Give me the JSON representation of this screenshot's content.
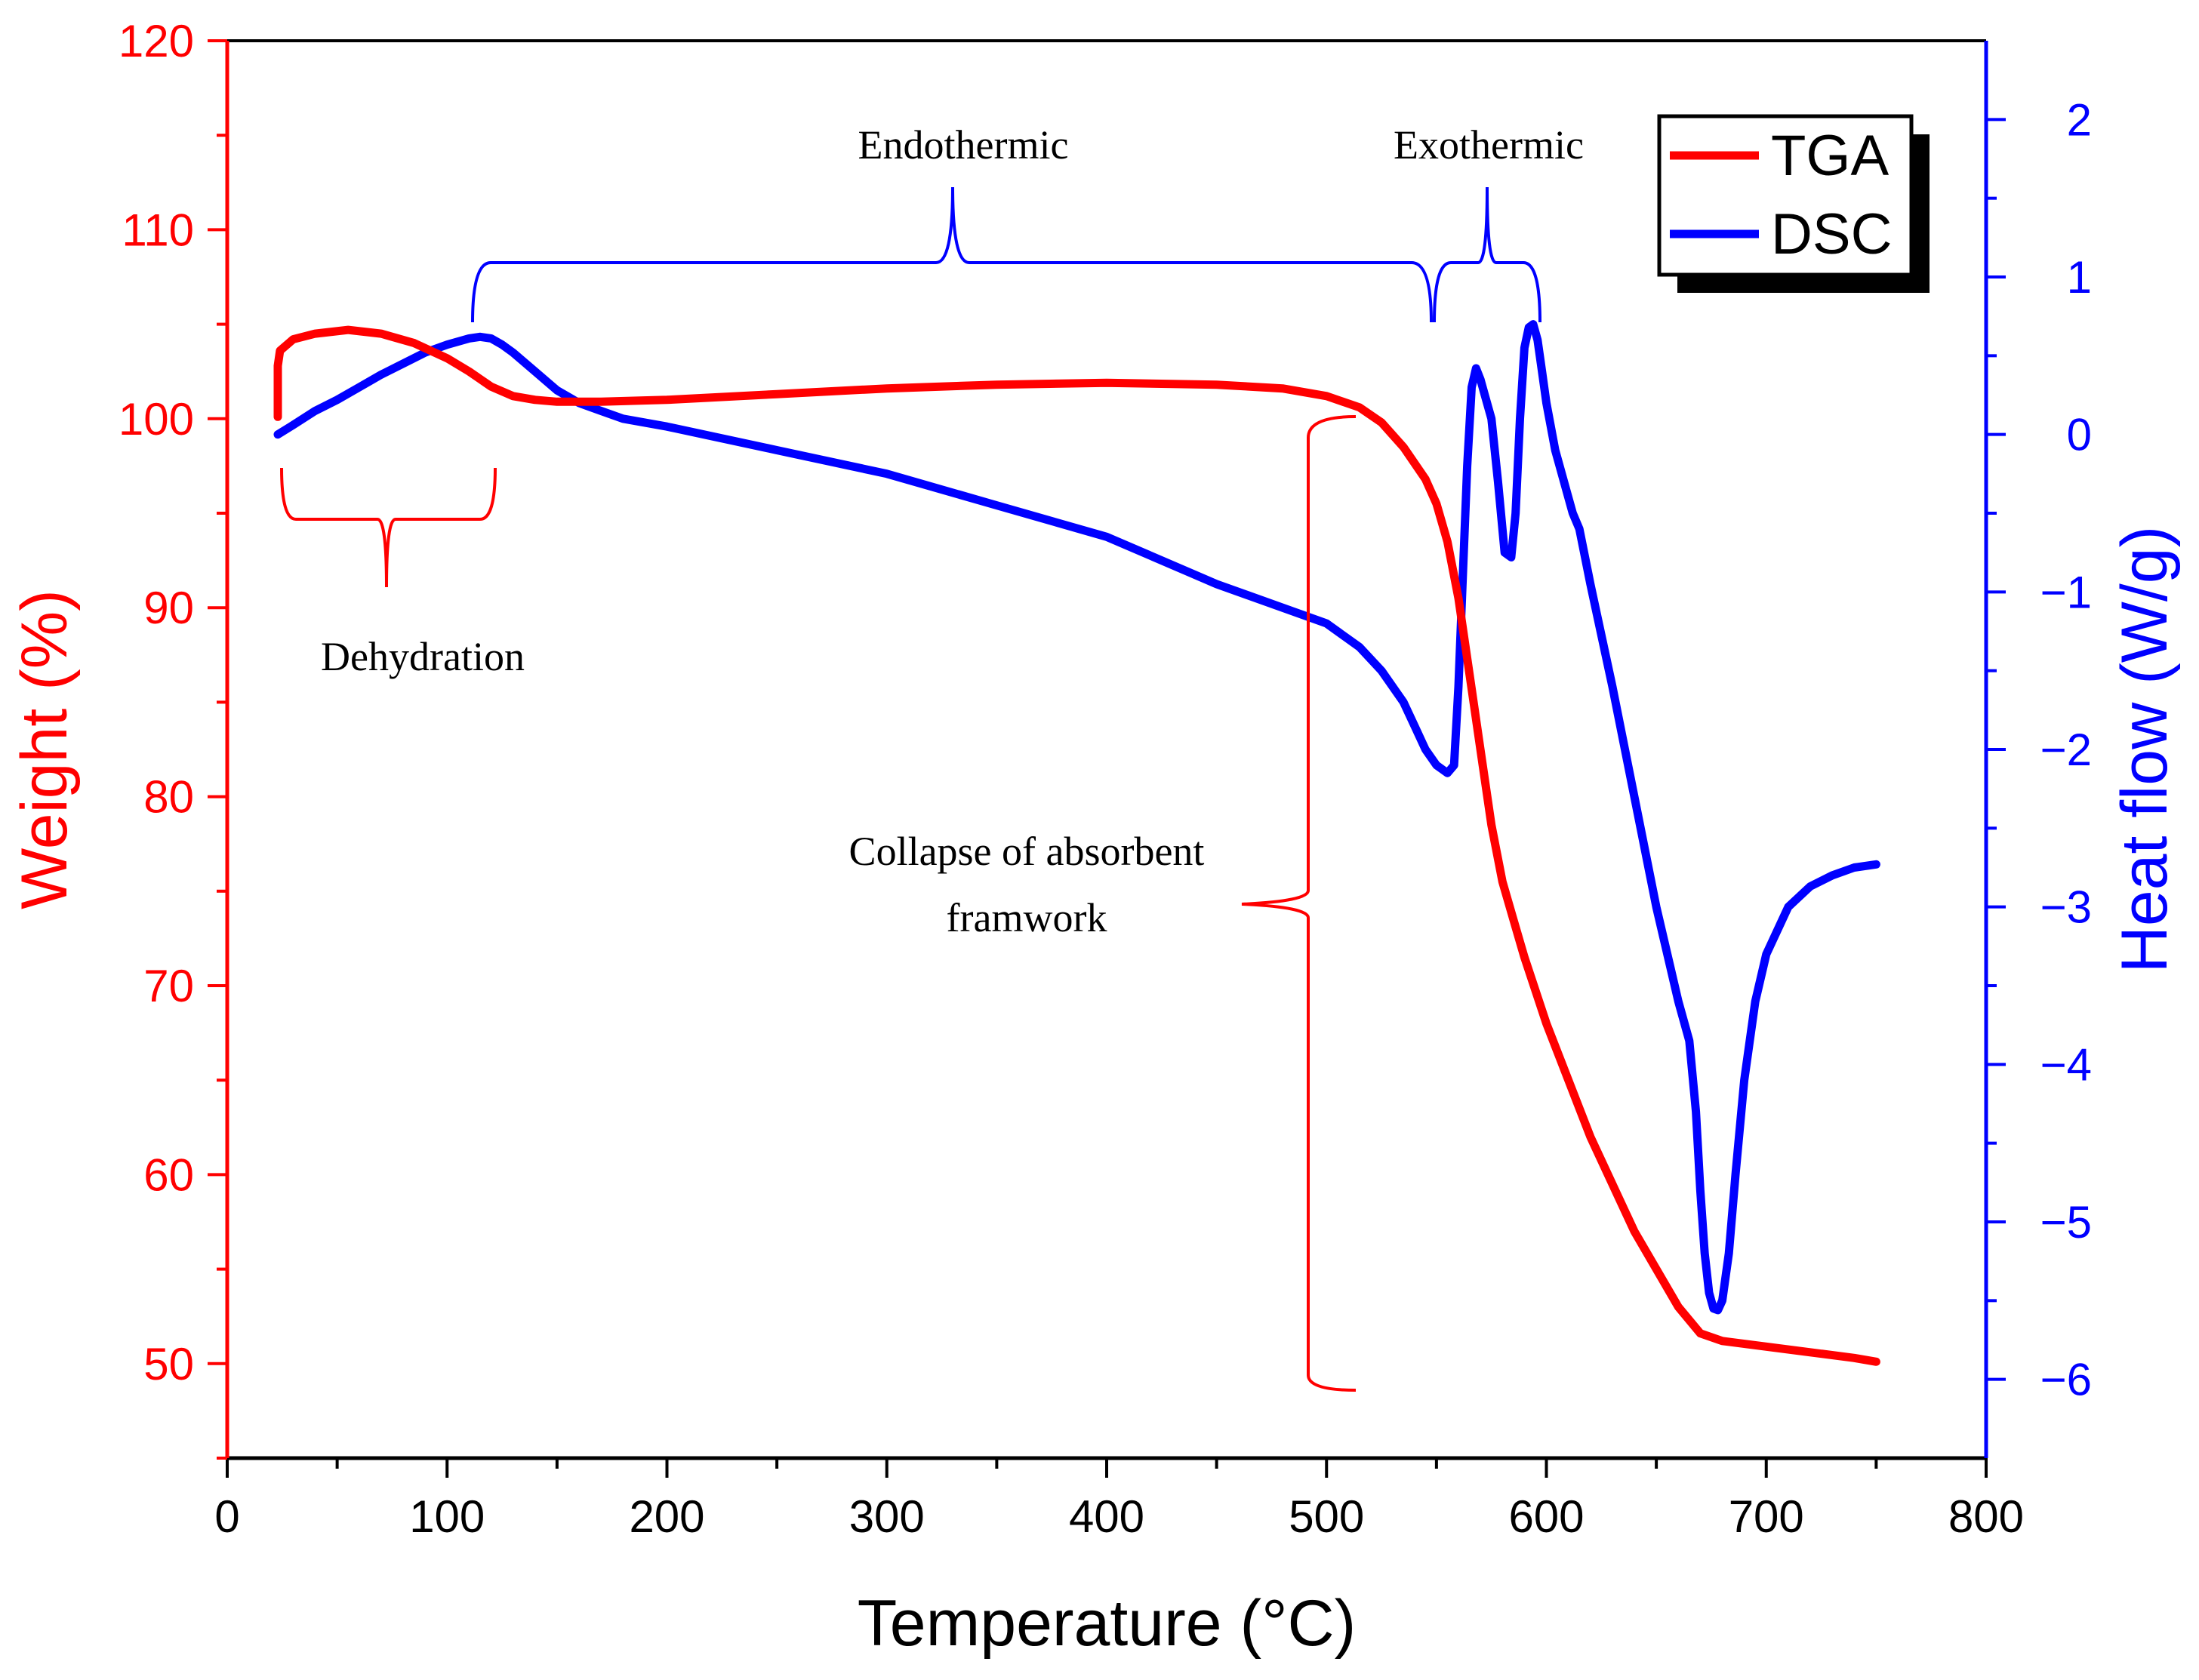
{
  "chart_data": {
    "type": "line",
    "title": "",
    "xlabel": "Temperature (°C)",
    "ylabel": "Weight (%)",
    "y2label": "Heat flow (W/g)",
    "xlim": [
      0,
      800
    ],
    "ylim": [
      45,
      120
    ],
    "y2lim": [
      -6.5,
      2.5
    ],
    "x_ticks": [
      0,
      100,
      200,
      300,
      400,
      500,
      600,
      700,
      800
    ],
    "y_ticks": [
      50,
      60,
      70,
      80,
      90,
      100,
      110,
      120
    ],
    "y2_ticks": [
      -6,
      -5,
      -4,
      -3,
      -2,
      -1,
      0,
      1,
      2
    ],
    "y2_tick_labels": [
      "−6",
      "−5",
      "−4",
      "−3",
      "−2",
      "−1",
      "0",
      "1",
      "2"
    ],
    "grid": false,
    "legend": {
      "position": "top-right",
      "entries": [
        "TGA",
        "DSC"
      ]
    },
    "colors": {
      "tga": "#ff0000",
      "dsc": "#0000ff",
      "axis_left": "#ff0000",
      "axis_right": "#0000ff"
    },
    "series": [
      {
        "name": "TGA",
        "axis": "left",
        "x": [
          23,
          23,
          24,
          30,
          40,
          55,
          70,
          85,
          100,
          110,
          120,
          130,
          140,
          150,
          170,
          200,
          250,
          300,
          350,
          400,
          450,
          480,
          500,
          515,
          525,
          535,
          545,
          550,
          555,
          560,
          565,
          570,
          575,
          580,
          585,
          590,
          600,
          620,
          640,
          660,
          670,
          680,
          700,
          720,
          740,
          750
        ],
        "y": [
          100.1,
          102.8,
          103.6,
          104.2,
          104.5,
          104.7,
          104.5,
          104.0,
          103.2,
          102.5,
          101.7,
          101.2,
          101.0,
          100.9,
          100.9,
          101.0,
          101.3,
          101.6,
          101.8,
          101.9,
          101.8,
          101.6,
          101.2,
          100.6,
          99.8,
          98.5,
          96.8,
          95.5,
          93.5,
          90.5,
          86.5,
          82.5,
          78.5,
          75.5,
          73.5,
          71.5,
          68.0,
          62.0,
          57.0,
          53.0,
          51.6,
          51.2,
          50.9,
          50.6,
          50.3,
          50.1
        ]
      },
      {
        "name": "DSC",
        "axis": "right",
        "x": [
          23,
          30,
          40,
          50,
          60,
          70,
          80,
          90,
          100,
          110,
          115,
          120,
          125,
          130,
          140,
          150,
          160,
          170,
          180,
          200,
          250,
          300,
          350,
          400,
          450,
          480,
          500,
          515,
          525,
          535,
          540,
          545,
          550,
          555,
          558,
          560,
          562,
          564,
          566,
          568,
          570,
          572,
          575,
          578,
          581,
          584,
          586,
          588,
          590,
          592,
          594,
          596,
          598,
          600,
          604,
          608,
          612,
          615,
          620,
          630,
          640,
          650,
          660,
          665,
          668,
          670,
          672,
          674,
          676,
          678,
          680,
          683,
          686,
          690,
          695,
          700,
          710,
          720,
          730,
          740,
          750
        ],
        "y": [
          0.0,
          0.06,
          0.15,
          0.22,
          0.3,
          0.38,
          0.45,
          0.52,
          0.57,
          0.61,
          0.62,
          0.61,
          0.57,
          0.52,
          0.4,
          0.28,
          0.2,
          0.15,
          0.1,
          0.05,
          -0.1,
          -0.25,
          -0.45,
          -0.65,
          -0.95,
          -1.1,
          -1.2,
          -1.35,
          -1.5,
          -1.7,
          -1.85,
          -2.0,
          -2.1,
          -2.15,
          -2.1,
          -1.6,
          -0.9,
          -0.2,
          0.3,
          0.42,
          0.35,
          0.25,
          0.1,
          -0.3,
          -0.75,
          -0.78,
          -0.5,
          0.1,
          0.55,
          0.68,
          0.7,
          0.6,
          0.4,
          0.2,
          -0.1,
          -0.3,
          -0.5,
          -0.6,
          -0.95,
          -1.6,
          -2.3,
          -3.0,
          -3.6,
          -3.85,
          -4.3,
          -4.8,
          -5.2,
          -5.45,
          -5.55,
          -5.56,
          -5.5,
          -5.2,
          -4.7,
          -4.1,
          -3.6,
          -3.3,
          -3.0,
          -2.87,
          -2.8,
          -2.75,
          -2.73
        ]
      }
    ],
    "annotations": {
      "endothermic": "Endothermic",
      "exothermic": "Exothermic",
      "dehydration": "Dehydration",
      "collapse_line1": "Collapse of absorbent",
      "collapse_line2": "framwork"
    }
  }
}
